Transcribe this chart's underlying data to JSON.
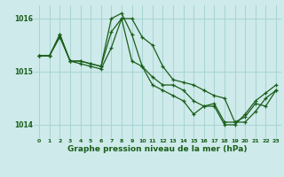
{
  "title": "Graphe pression niveau de la mer (hPa)",
  "background_color": "#ceeaea",
  "grid_color": "#a8d4d4",
  "line_color": "#1a5e1a",
  "ylim": [
    1013.75,
    1016.25
  ],
  "yticks": [
    1014,
    1015,
    1016
  ],
  "xlim": [
    -0.5,
    23.5
  ],
  "xticks": [
    0,
    1,
    2,
    3,
    4,
    5,
    6,
    7,
    8,
    9,
    10,
    11,
    12,
    13,
    14,
    15,
    16,
    17,
    18,
    19,
    20,
    21,
    22,
    23
  ],
  "line1": {
    "x": [
      0,
      1,
      2,
      3,
      4,
      5,
      6,
      7,
      8,
      9,
      10,
      11,
      12,
      13,
      14,
      15,
      16,
      17,
      18,
      19,
      20,
      21,
      22,
      23
    ],
    "y": [
      1015.3,
      1015.3,
      1015.7,
      1015.2,
      1015.2,
      1015.15,
      1015.1,
      1015.75,
      1016.0,
      1016.0,
      1015.65,
      1015.5,
      1015.1,
      1014.85,
      1014.8,
      1014.75,
      1014.65,
      1014.55,
      1014.5,
      1014.05,
      1014.05,
      1014.25,
      1014.5,
      1014.65
    ]
  },
  "line2": {
    "x": [
      0,
      1,
      2,
      3,
      4,
      5,
      6,
      7,
      8,
      9,
      10,
      11,
      12,
      13,
      14,
      15,
      16,
      17,
      18,
      19,
      20,
      21,
      22,
      23
    ],
    "y": [
      1015.3,
      1015.3,
      1015.7,
      1015.2,
      1015.2,
      1015.15,
      1015.1,
      1016.0,
      1016.1,
      1015.7,
      1015.1,
      1014.9,
      1014.75,
      1014.75,
      1014.65,
      1014.45,
      1014.35,
      1014.35,
      1014.0,
      1014.0,
      1014.2,
      1014.45,
      1014.6,
      1014.75
    ]
  },
  "line3": {
    "x": [
      0,
      1,
      2,
      3,
      4,
      5,
      6,
      7,
      8,
      9,
      10,
      11,
      12,
      13,
      14,
      15,
      16,
      17,
      18,
      19,
      20,
      21,
      22,
      23
    ],
    "y": [
      1015.3,
      1015.3,
      1015.65,
      1015.2,
      1015.15,
      1015.1,
      1015.05,
      1015.45,
      1016.0,
      1015.2,
      1015.1,
      1014.75,
      1014.65,
      1014.55,
      1014.45,
      1014.2,
      1014.35,
      1014.4,
      1014.05,
      1014.05,
      1014.15,
      1014.4,
      1014.35,
      1014.65
    ]
  }
}
